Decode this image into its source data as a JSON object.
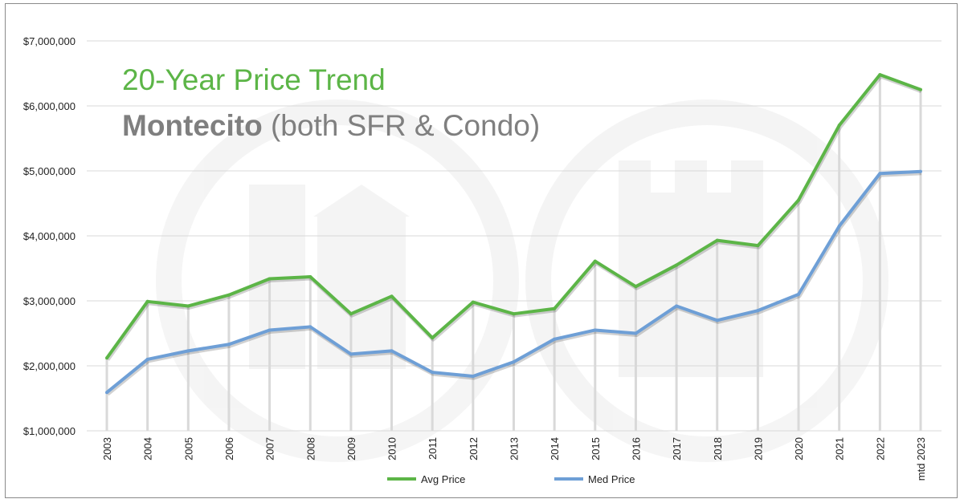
{
  "chart_data": {
    "type": "line",
    "title": "20-Year Price Trend",
    "subtitle_bold": "Montecito",
    "subtitle_rest": " (both SFR & Condo)",
    "categories": [
      "2003",
      "2004",
      "2005",
      "2006",
      "2007",
      "2008",
      "2009",
      "2010",
      "2011",
      "2012",
      "2013",
      "2014",
      "2015",
      "2016",
      "2017",
      "2018",
      "2019",
      "2020",
      "2021",
      "2022",
      "mtd 2023"
    ],
    "series": [
      {
        "name": "Avg Price",
        "color": "#5cb547",
        "values": [
          2120000,
          2990000,
          2920000,
          3090000,
          3340000,
          3370000,
          2800000,
          3070000,
          2430000,
          2980000,
          2800000,
          2880000,
          3610000,
          3220000,
          3550000,
          3930000,
          3850000,
          4550000,
          5700000,
          6480000,
          6250000
        ]
      },
      {
        "name": "Med Price",
        "color": "#6e9fd6",
        "values": [
          1590000,
          2100000,
          2230000,
          2330000,
          2550000,
          2600000,
          2180000,
          2230000,
          1900000,
          1840000,
          2060000,
          2410000,
          2550000,
          2500000,
          2920000,
          2700000,
          2850000,
          3100000,
          4150000,
          4960000,
          4990000
        ]
      }
    ],
    "ylim": [
      1000000,
      7000000
    ],
    "yticks": [
      "$1,000,000",
      "$2,000,000",
      "$3,000,000",
      "$4,000,000",
      "$5,000,000",
      "$6,000,000",
      "$7,000,000"
    ],
    "ytick_values": [
      1000000,
      2000000,
      3000000,
      4000000,
      5000000,
      6000000,
      7000000
    ],
    "grid": true,
    "legend_position": "bottom-center",
    "title_color": "#5cb547",
    "subtitle_color": "#7f7f7f",
    "grid_color": "#d9d9d9",
    "drop_line_color": "#d9d9d9"
  }
}
